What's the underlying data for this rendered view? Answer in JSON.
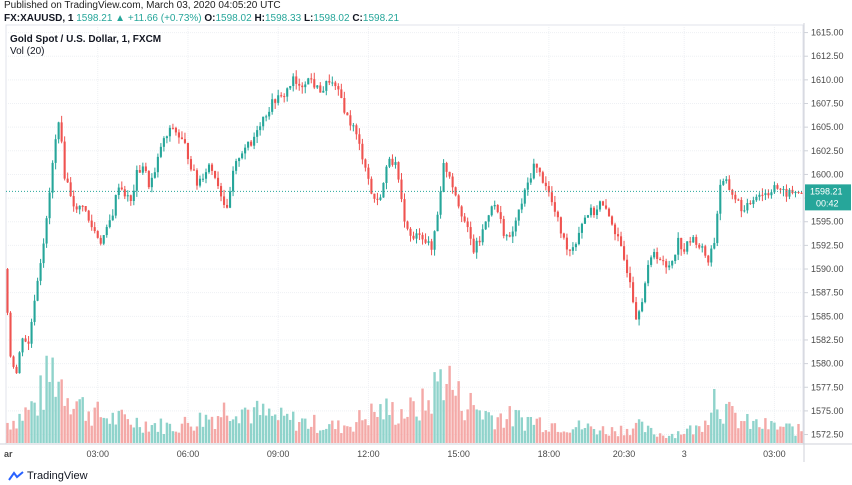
{
  "header": {
    "published": "Published on TradingView.com, March 03, 2020 04:05:20 UTC",
    "symbol": "FX:XAUUSD, 1",
    "last": "1598.21",
    "change": "▲ +11.66 (+0.73%)",
    "o_label": "O:",
    "o_value": "1598.02",
    "h_label": "H:",
    "h_value": "1598.33",
    "l_label": "L:",
    "l_value": "1598.02",
    "c_label": "C:",
    "c_value": "1598.21"
  },
  "legend": {
    "title": "Gold Spot / U.S. Dollar, 1, FXCM",
    "volume": "Vol (20)"
  },
  "footer": {
    "brand": "TradingView"
  },
  "colors": {
    "up": "#26a69a",
    "down": "#ef5350",
    "vol_up": "#8fd3cb",
    "vol_down": "#f4a9a7",
    "price_line": "#26a69a"
  },
  "chart_data": {
    "type": "candlestick",
    "title": "Gold Spot / U.S. Dollar, 1, FXCM",
    "symbol": "FX:XAUUSD",
    "interval": "1 minute",
    "current_price": "1598.21",
    "current_price_value": 1598.21,
    "countdown": "00:42",
    "y_ticks": [
      "1615.00",
      "1612.50",
      "1610.00",
      "1607.50",
      "1605.00",
      "1602.50",
      "1600.00",
      "1597.50",
      "1595.00",
      "1592.50",
      "1590.00",
      "1587.50",
      "1585.00",
      "1582.50",
      "1580.00",
      "1577.50",
      "1575.00",
      "1572.50"
    ],
    "y_tick_values": [
      1615,
      1612.5,
      1610,
      1607.5,
      1605,
      1602.5,
      1600,
      1597.5,
      1595,
      1592.5,
      1590,
      1587.5,
      1585,
      1582.5,
      1580,
      1577.5,
      1575,
      1572.5
    ],
    "ylim": [
      1571.5,
      1615.8
    ],
    "x_ticks": [
      "ar",
      "03:00",
      "06:00",
      "09:00",
      "12:00",
      "15:00",
      "18:00",
      "20:30",
      "3",
      "03:00"
    ],
    "x_tick_positions_bars": [
      0,
      30,
      60,
      90,
      120,
      150,
      180,
      205,
      225,
      255
    ],
    "price_path": [
      [
        0,
        1590
      ],
      [
        2,
        1581
      ],
      [
        4,
        1579
      ],
      [
        6,
        1583
      ],
      [
        8,
        1582
      ],
      [
        10,
        1587
      ],
      [
        12,
        1591
      ],
      [
        14,
        1595
      ],
      [
        16,
        1601
      ],
      [
        18,
        1606
      ],
      [
        20,
        1600
      ],
      [
        22,
        1598
      ],
      [
        24,
        1596
      ],
      [
        26,
        1597
      ],
      [
        28,
        1595
      ],
      [
        30,
        1594
      ],
      [
        32,
        1593
      ],
      [
        34,
        1594
      ],
      [
        36,
        1596
      ],
      [
        38,
        1599
      ],
      [
        40,
        1598
      ],
      [
        42,
        1597
      ],
      [
        44,
        1600
      ],
      [
        46,
        1601
      ],
      [
        48,
        1599
      ],
      [
        50,
        1600
      ],
      [
        52,
        1603
      ],
      [
        54,
        1604
      ],
      [
        56,
        1605
      ],
      [
        58,
        1604
      ],
      [
        60,
        1603
      ],
      [
        62,
        1601
      ],
      [
        64,
        1599
      ],
      [
        66,
        1600
      ],
      [
        68,
        1601
      ],
      [
        70,
        1600
      ],
      [
        72,
        1598
      ],
      [
        74,
        1596
      ],
      [
        76,
        1600
      ],
      [
        78,
        1602
      ],
      [
        80,
        1603
      ],
      [
        82,
        1603
      ],
      [
        84,
        1605
      ],
      [
        86,
        1606
      ],
      [
        88,
        1607
      ],
      [
        90,
        1608
      ],
      [
        92,
        1608
      ],
      [
        94,
        1609
      ],
      [
        96,
        1610
      ],
      [
        98,
        1609
      ],
      [
        100,
        1610
      ],
      [
        102,
        1610
      ],
      [
        104,
        1609
      ],
      [
        106,
        1609
      ],
      [
        108,
        1610
      ],
      [
        110,
        1609
      ],
      [
        112,
        1608
      ],
      [
        114,
        1606
      ],
      [
        116,
        1605
      ],
      [
        118,
        1603
      ],
      [
        120,
        1601
      ],
      [
        122,
        1598
      ],
      [
        124,
        1597
      ],
      [
        126,
        1599
      ],
      [
        128,
        1602
      ],
      [
        130,
        1601
      ],
      [
        132,
        1597
      ],
      [
        134,
        1594
      ],
      [
        136,
        1593
      ],
      [
        138,
        1594
      ],
      [
        140,
        1593
      ],
      [
        142,
        1592
      ],
      [
        144,
        1596
      ],
      [
        146,
        1601
      ],
      [
        148,
        1600
      ],
      [
        150,
        1598
      ],
      [
        152,
        1596
      ],
      [
        154,
        1594
      ],
      [
        156,
        1592
      ],
      [
        158,
        1593
      ],
      [
        160,
        1595
      ],
      [
        162,
        1597
      ],
      [
        164,
        1596
      ],
      [
        166,
        1594
      ],
      [
        168,
        1593
      ],
      [
        170,
        1595
      ],
      [
        172,
        1597
      ],
      [
        174,
        1599
      ],
      [
        176,
        1601
      ],
      [
        178,
        1600
      ],
      [
        180,
        1599
      ],
      [
        182,
        1597
      ],
      [
        184,
        1595
      ],
      [
        186,
        1593
      ],
      [
        188,
        1592
      ],
      [
        190,
        1593
      ],
      [
        192,
        1595
      ],
      [
        194,
        1596
      ],
      [
        196,
        1596
      ],
      [
        198,
        1597
      ],
      [
        200,
        1596
      ],
      [
        202,
        1595
      ],
      [
        204,
        1593
      ],
      [
        206,
        1591
      ],
      [
        208,
        1589
      ],
      [
        210,
        1585
      ],
      [
        212,
        1587
      ],
      [
        214,
        1590
      ],
      [
        216,
        1592
      ],
      [
        218,
        1591
      ],
      [
        220,
        1590
      ],
      [
        222,
        1591
      ],
      [
        224,
        1593
      ],
      [
        226,
        1592
      ],
      [
        228,
        1593
      ],
      [
        230,
        1593
      ],
      [
        232,
        1592
      ],
      [
        234,
        1591
      ],
      [
        236,
        1593
      ],
      [
        238,
        1599
      ],
      [
        240,
        1599
      ],
      [
        242,
        1598
      ],
      [
        244,
        1597
      ],
      [
        246,
        1596
      ],
      [
        248,
        1597
      ],
      [
        250,
        1598
      ],
      [
        252,
        1598
      ],
      [
        254,
        1598
      ],
      [
        256,
        1599
      ],
      [
        258,
        1598
      ],
      [
        260,
        1598
      ],
      [
        262,
        1598
      ],
      [
        264,
        1598.21
      ]
    ],
    "volume_path": [
      [
        0,
        25
      ],
      [
        5,
        35
      ],
      [
        10,
        50
      ],
      [
        15,
        90
      ],
      [
        20,
        65
      ],
      [
        25,
        45
      ],
      [
        30,
        35
      ],
      [
        35,
        30
      ],
      [
        40,
        28
      ],
      [
        45,
        25
      ],
      [
        50,
        22
      ],
      [
        55,
        20
      ],
      [
        60,
        25
      ],
      [
        65,
        30
      ],
      [
        70,
        35
      ],
      [
        75,
        50
      ],
      [
        80,
        40
      ],
      [
        85,
        35
      ],
      [
        90,
        30
      ],
      [
        95,
        28
      ],
      [
        100,
        25
      ],
      [
        105,
        22
      ],
      [
        110,
        20
      ],
      [
        115,
        25
      ],
      [
        120,
        35
      ],
      [
        125,
        40
      ],
      [
        130,
        38
      ],
      [
        135,
        40
      ],
      [
        140,
        50
      ],
      [
        145,
        90
      ],
      [
        150,
        55
      ],
      [
        155,
        45
      ],
      [
        160,
        35
      ],
      [
        165,
        32
      ],
      [
        170,
        30
      ],
      [
        175,
        28
      ],
      [
        180,
        25
      ],
      [
        185,
        22
      ],
      [
        190,
        20
      ],
      [
        195,
        18
      ],
      [
        200,
        15
      ],
      [
        205,
        18
      ],
      [
        210,
        20
      ],
      [
        215,
        12
      ],
      [
        220,
        10
      ],
      [
        225,
        15
      ],
      [
        230,
        18
      ],
      [
        235,
        60
      ],
      [
        240,
        35
      ],
      [
        245,
        25
      ],
      [
        250,
        22
      ],
      [
        255,
        20
      ],
      [
        260,
        18
      ],
      [
        264,
        15
      ]
    ],
    "volume_max": 100
  }
}
